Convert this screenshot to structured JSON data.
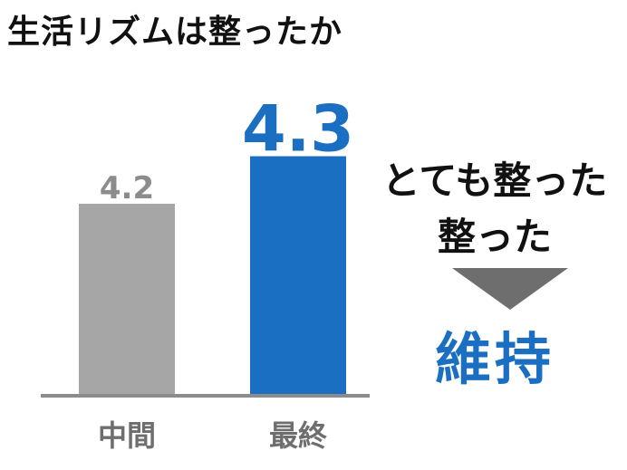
{
  "title": "生活リズムは整ったか",
  "chart_data": {
    "type": "bar",
    "categories": [
      "中間",
      "最終"
    ],
    "values": [
      4.2,
      4.3
    ],
    "value_labels": [
      "4.2",
      "4.3"
    ],
    "colors": [
      "#a6a6a6",
      "#1b6fc2"
    ],
    "label_colors": [
      "#8c8c8c",
      "#1b6fc2"
    ],
    "ylim": [
      3.8,
      4.4
    ],
    "grid": false,
    "legend": "none"
  },
  "annotation": {
    "line1": "とても整った",
    "line2": "整った",
    "result": "維持",
    "arrow_icon": "down-triangle-icon"
  }
}
